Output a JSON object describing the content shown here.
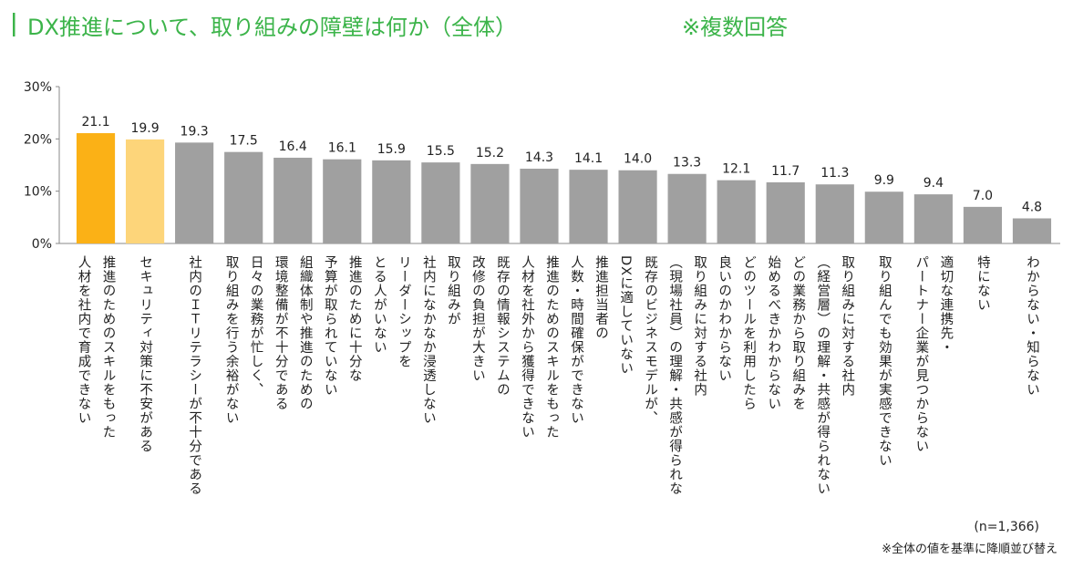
{
  "chart_data": {
    "type": "bar",
    "title": "DX推進について、取り組みの障壁は何か（全体）",
    "subtitle": "※複数回答",
    "categories": [
      [
        "推進のためのスキルをもった",
        "人材を社内で育成できない"
      ],
      [
        "セキュリティ対策に不安がある"
      ],
      [
        "社内のＩＴリテラシーが不十分である"
      ],
      [
        "日々の業務が忙しく、",
        "取り組みを行う余裕がない"
      ],
      [
        "組織体制や推進のための",
        "環境整備が不十分である"
      ],
      [
        "推進のために十分な",
        "予算が取られていない"
      ],
      [
        "リーダーシップを",
        "とる人がいない"
      ],
      [
        "取り組みが",
        "社内になかなか浸透しない"
      ],
      [
        "既存の情報システムの",
        "改修の負担が大きい"
      ],
      [
        "推進のためのスキルをもった",
        "人材を社外から獲得できない"
      ],
      [
        "推進担当者の",
        "人数・時間確保ができない"
      ],
      [
        "既存のビジネスモデルが、",
        "DXに適していない"
      ],
      [
        "取り組みに対する社内",
        "（現場社員）の理解・共感が得られな"
      ],
      [
        "どのツールを利用したら",
        "良いのかわからない"
      ],
      [
        "どの業務から取り組みを",
        "始めるべきかわからない"
      ],
      [
        "取り組みに対する社内",
        "（経営層）の理解・共感が得られない"
      ],
      [
        "取り組んでも効果が実感できない"
      ],
      [
        "適切な連携先・",
        "パートナー企業が見つからない"
      ],
      [
        "特にない"
      ],
      [
        "わからない・知らない"
      ]
    ],
    "values": [
      21.1,
      19.9,
      19.3,
      17.5,
      16.4,
      16.1,
      15.9,
      15.5,
      15.2,
      14.3,
      14.1,
      14.0,
      13.3,
      12.1,
      11.7,
      11.3,
      9.9,
      9.4,
      7.0,
      4.8
    ],
    "value_labels": [
      "21.1",
      "19.9",
      "19.3",
      "17.5",
      "16.4",
      "16.1",
      "15.9",
      "15.5",
      "15.2",
      "14.3",
      "14.1",
      "14.0",
      "13.3",
      "12.1",
      "11.7",
      "11.3",
      "9.9",
      "9.4",
      "7.0",
      "4.8"
    ],
    "colors": [
      "#fbb116",
      "#fdd57a",
      "#a0a0a0",
      "#a0a0a0",
      "#a0a0a0",
      "#a0a0a0",
      "#a0a0a0",
      "#a0a0a0",
      "#a0a0a0",
      "#a0a0a0",
      "#a0a0a0",
      "#a0a0a0",
      "#a0a0a0",
      "#a0a0a0",
      "#a0a0a0",
      "#a0a0a0",
      "#a0a0a0",
      "#a0a0a0",
      "#a0a0a0",
      "#a0a0a0"
    ],
    "ylim": [
      0,
      30
    ],
    "yticks": [
      {
        "value": 0,
        "label": "0%"
      },
      {
        "value": 10,
        "label": "10%"
      },
      {
        "value": 20,
        "label": "20%"
      },
      {
        "value": 30,
        "label": "30%"
      }
    ],
    "grid": false,
    "notes": [
      "(n=1,366)",
      "※全体の値を基準に降順並び替え"
    ]
  }
}
